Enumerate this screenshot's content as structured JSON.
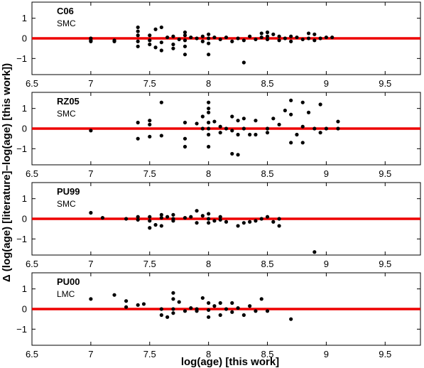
{
  "chart_data": {
    "type": "scatter",
    "xlabel": "log(age) [this work]",
    "ylabel": "Δ (log(age) [literature]–log(age) [this work])",
    "xlim": [
      6.5,
      9.8
    ],
    "ylim": [
      -1.8,
      1.8
    ],
    "xticks": [
      "6.5",
      "7",
      "7.5",
      "8",
      "8.5",
      "9",
      "9.5"
    ],
    "yticks": [
      "1",
      "0",
      "−1"
    ],
    "colors": {
      "points": "#000000",
      "reference_line": "#ee0000"
    },
    "panels": [
      {
        "name": "C06",
        "subtitle": "SMC",
        "points": [
          [
            7.0,
            0.0
          ],
          [
            7.0,
            -0.1
          ],
          [
            7.0,
            -0.15
          ],
          [
            7.2,
            -0.1
          ],
          [
            7.2,
            -0.15
          ],
          [
            7.4,
            0.55
          ],
          [
            7.4,
            0.35
          ],
          [
            7.4,
            0.15
          ],
          [
            7.4,
            -0.15
          ],
          [
            7.4,
            -0.4
          ],
          [
            7.5,
            0.15
          ],
          [
            7.5,
            -0.1
          ],
          [
            7.5,
            -0.3
          ],
          [
            7.55,
            0.45
          ],
          [
            7.55,
            -0.45
          ],
          [
            7.6,
            0.55
          ],
          [
            7.6,
            -0.2
          ],
          [
            7.6,
            -0.6
          ],
          [
            7.65,
            0.05
          ],
          [
            7.7,
            0.1
          ],
          [
            7.7,
            -0.3
          ],
          [
            7.7,
            -0.5
          ],
          [
            7.75,
            -0.05
          ],
          [
            7.8,
            0.3
          ],
          [
            7.8,
            0.15
          ],
          [
            7.8,
            -0.1
          ],
          [
            7.8,
            -0.4
          ],
          [
            7.8,
            -0.8
          ],
          [
            7.85,
            0.05
          ],
          [
            7.9,
            0.0
          ],
          [
            7.95,
            0.1
          ],
          [
            7.95,
            -0.15
          ],
          [
            8.0,
            0.2
          ],
          [
            8.0,
            0.0
          ],
          [
            8.0,
            -0.25
          ],
          [
            8.0,
            -0.8
          ],
          [
            8.05,
            0.05
          ],
          [
            8.1,
            -0.05
          ],
          [
            8.15,
            0.05
          ],
          [
            8.2,
            -0.15
          ],
          [
            8.25,
            0.0
          ],
          [
            8.3,
            -0.1
          ],
          [
            8.3,
            -1.2
          ],
          [
            8.35,
            0.1
          ],
          [
            8.4,
            -0.05
          ],
          [
            8.45,
            0.25
          ],
          [
            8.45,
            0.05
          ],
          [
            8.5,
            0.3
          ],
          [
            8.5,
            0.1
          ],
          [
            8.5,
            -0.05
          ],
          [
            8.55,
            0.2
          ],
          [
            8.6,
            0.1
          ],
          [
            8.6,
            -0.1
          ],
          [
            8.65,
            0.0
          ],
          [
            8.7,
            0.1
          ],
          [
            8.7,
            -0.15
          ],
          [
            8.75,
            0.05
          ],
          [
            8.8,
            -0.05
          ],
          [
            8.85,
            0.25
          ],
          [
            8.85,
            0.0
          ],
          [
            8.9,
            0.2
          ],
          [
            8.9,
            -0.1
          ],
          [
            8.95,
            0.0
          ],
          [
            9.0,
            0.05
          ],
          [
            9.05,
            0.05
          ]
        ]
      },
      {
        "name": "RZ05",
        "subtitle": "SMC",
        "points": [
          [
            7.0,
            -0.1
          ],
          [
            7.4,
            0.3
          ],
          [
            7.4,
            -0.5
          ],
          [
            7.5,
            0.4
          ],
          [
            7.5,
            0.2
          ],
          [
            7.5,
            -0.4
          ],
          [
            7.6,
            1.3
          ],
          [
            7.6,
            -0.35
          ],
          [
            7.8,
            0.3
          ],
          [
            7.8,
            -0.5
          ],
          [
            7.8,
            -0.9
          ],
          [
            7.9,
            0.25
          ],
          [
            7.95,
            0.6
          ],
          [
            7.95,
            0.0
          ],
          [
            8.0,
            1.3
          ],
          [
            8.0,
            1.0
          ],
          [
            8.0,
            0.8
          ],
          [
            8.0,
            0.3
          ],
          [
            8.0,
            0.0
          ],
          [
            8.0,
            -0.3
          ],
          [
            8.0,
            -0.9
          ],
          [
            8.05,
            0.35
          ],
          [
            8.1,
            0.1
          ],
          [
            8.1,
            -0.2
          ],
          [
            8.15,
            0.0
          ],
          [
            8.2,
            0.6
          ],
          [
            8.2,
            -0.1
          ],
          [
            8.25,
            0.4
          ],
          [
            8.25,
            -0.3
          ],
          [
            8.3,
            0.5
          ],
          [
            8.3,
            0.0
          ],
          [
            8.35,
            -0.3
          ],
          [
            8.4,
            0.4
          ],
          [
            8.4,
            -0.3
          ],
          [
            8.5,
            -0.2
          ],
          [
            8.5,
            0.0
          ],
          [
            8.55,
            0.5
          ],
          [
            8.6,
            0.2
          ],
          [
            8.65,
            0.9
          ],
          [
            8.7,
            1.4
          ],
          [
            8.7,
            0.7
          ],
          [
            8.7,
            -0.7
          ],
          [
            8.75,
            -0.3
          ],
          [
            8.8,
            1.3
          ],
          [
            8.8,
            0.1
          ],
          [
            8.8,
            -0.7
          ],
          [
            8.85,
            0.8
          ],
          [
            8.9,
            0.0
          ],
          [
            8.95,
            1.2
          ],
          [
            8.95,
            -0.2
          ],
          [
            9.0,
            0.0
          ],
          [
            9.1,
            0.35
          ],
          [
            9.1,
            0.0
          ],
          [
            8.25,
            -1.3
          ],
          [
            8.2,
            -1.25
          ]
        ]
      },
      {
        "name": "PU99",
        "subtitle": "SMC",
        "points": [
          [
            7.0,
            0.3
          ],
          [
            7.1,
            0.05
          ],
          [
            7.3,
            0.0
          ],
          [
            7.4,
            0.1
          ],
          [
            7.4,
            -0.05
          ],
          [
            7.5,
            0.1
          ],
          [
            7.5,
            -0.1
          ],
          [
            7.5,
            -0.45
          ],
          [
            7.55,
            -0.3
          ],
          [
            7.6,
            0.2
          ],
          [
            7.6,
            0.05
          ],
          [
            7.6,
            -0.35
          ],
          [
            7.65,
            0.1
          ],
          [
            7.7,
            0.0
          ],
          [
            7.7,
            -0.1
          ],
          [
            7.8,
            0.05
          ],
          [
            7.85,
            0.1
          ],
          [
            7.9,
            0.4
          ],
          [
            7.9,
            -0.2
          ],
          [
            7.95,
            0.15
          ],
          [
            8.0,
            0.25
          ],
          [
            8.0,
            0.0
          ],
          [
            8.05,
            -0.1
          ],
          [
            8.1,
            0.1
          ],
          [
            8.1,
            -0.05
          ],
          [
            8.15,
            -0.15
          ],
          [
            8.25,
            -0.35
          ],
          [
            8.3,
            -0.2
          ],
          [
            8.35,
            -0.15
          ],
          [
            8.4,
            -0.1
          ],
          [
            8.45,
            0.0
          ],
          [
            8.5,
            0.1
          ],
          [
            8.55,
            -0.15
          ],
          [
            8.6,
            -0.35
          ],
          [
            8.6,
            0.0
          ],
          [
            8.9,
            -1.65
          ],
          [
            8.0,
            -0.2
          ],
          [
            7.7,
            0.2
          ]
        ]
      },
      {
        "name": "PU00",
        "subtitle": "LMC",
        "points": [
          [
            7.0,
            0.5
          ],
          [
            7.2,
            0.7
          ],
          [
            7.3,
            0.4
          ],
          [
            7.3,
            0.1
          ],
          [
            7.4,
            0.2
          ],
          [
            7.45,
            0.25
          ],
          [
            7.6,
            0.0
          ],
          [
            7.6,
            -0.3
          ],
          [
            7.65,
            -0.4
          ],
          [
            7.7,
            0.5
          ],
          [
            7.7,
            0.0
          ],
          [
            7.7,
            -0.2
          ],
          [
            7.75,
            0.35
          ],
          [
            7.8,
            -0.1
          ],
          [
            7.85,
            0.05
          ],
          [
            7.9,
            0.0
          ],
          [
            7.9,
            -0.1
          ],
          [
            7.95,
            0.55
          ],
          [
            8.0,
            0.3
          ],
          [
            8.0,
            -0.05
          ],
          [
            8.0,
            -0.4
          ],
          [
            8.05,
            0.15
          ],
          [
            8.1,
            -0.3
          ],
          [
            8.15,
            0.0
          ],
          [
            8.2,
            0.3
          ],
          [
            8.2,
            -0.15
          ],
          [
            8.25,
            0.05
          ],
          [
            8.3,
            -0.3
          ],
          [
            8.35,
            0.15
          ],
          [
            8.4,
            -0.1
          ],
          [
            8.45,
            0.5
          ],
          [
            8.5,
            -0.1
          ],
          [
            8.7,
            -0.5
          ],
          [
            7.7,
            0.8
          ],
          [
            8.1,
            0.3
          ]
        ]
      }
    ]
  }
}
